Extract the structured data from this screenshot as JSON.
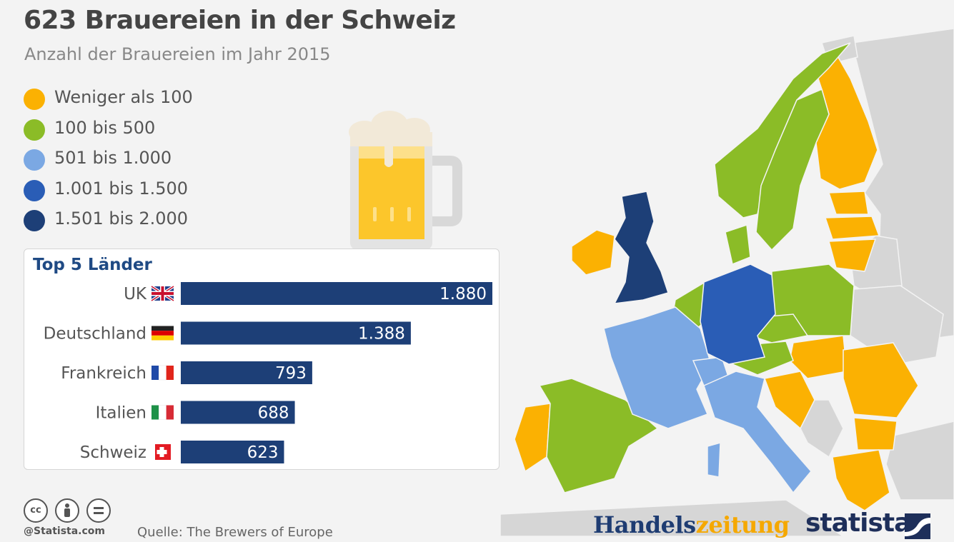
{
  "title": "623 Brauereien in der Schweiz",
  "subtitle": "Anzahl der Brauereien im Jahr 2015",
  "legend": [
    {
      "label": "Weniger als 100",
      "color": "#fbb102"
    },
    {
      "label": "100 bis 500",
      "color": "#8bbc27"
    },
    {
      "label": "501 bis 1.000",
      "color": "#7ba8e3"
    },
    {
      "label": "1.001 bis 1.500",
      "color": "#2a5db6"
    },
    {
      "label": "1.501 bis 2.000",
      "color": "#1d3f77"
    }
  ],
  "panel_title": "Top 5 Länder",
  "chart_data": {
    "type": "bar",
    "orientation": "horizontal",
    "title": "Top 5 Länder",
    "categories": [
      "UK",
      "Deutschland",
      "Frankreich",
      "Italien",
      "Schweiz"
    ],
    "values": [
      1880,
      1388,
      793,
      688,
      623
    ],
    "value_labels": [
      "1.880",
      "1.388",
      "793",
      "688",
      "623"
    ],
    "flags": [
      "uk-flag-icon",
      "germany-flag-icon",
      "france-flag-icon",
      "italy-flag-icon",
      "switzerland-flag-icon"
    ],
    "bar_color": "#1d3f77",
    "xlim": [
      0,
      1880
    ]
  },
  "map_legend_colors": {
    "under100": "#fbb102",
    "r100_500": "#8bbc27",
    "r501_1000": "#7ba8e3",
    "r1001_1500": "#2a5db6",
    "r1501_2000": "#1d3f77",
    "no_data": "#d4d4d4"
  },
  "license": {
    "credit": "@Statista.com"
  },
  "source": "Quelle: The Brewers of Europe",
  "brand": {
    "handels": "Handels",
    "zeitung": "zeitung",
    "statista": "statista"
  }
}
